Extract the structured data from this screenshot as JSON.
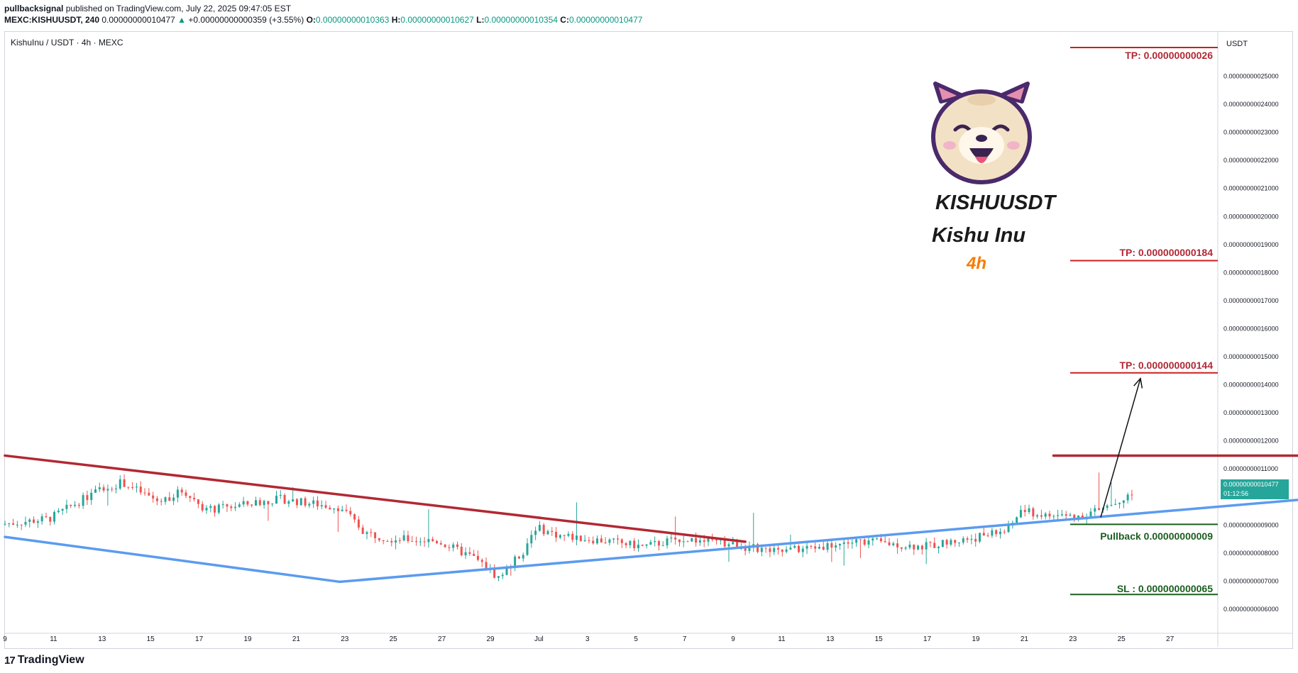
{
  "header": {
    "author": "pullbacksignal",
    "published": "published on TradingView.com, July 22, 2025 09:47:05 EST",
    "symbol_line": "MEXC:KISHUUSDT, 240",
    "last": "0.00000000010477",
    "change_icon": "▲",
    "change": "+0.00000000000359 (+3.55%)",
    "o_label": "O:",
    "o": "0.00000000010363",
    "h_label": "H:",
    "h": "0.00000000010627",
    "l_label": "L:",
    "l": "0.00000000010354",
    "c_label": "C:",
    "c": "0.00000000010477"
  },
  "chart_title": "KishuInu / USDT · 4h · MEXC",
  "logo_card": {
    "ticker": "KISHUUSDT",
    "name": "Kishu Inu",
    "timeframe": "4h",
    "icon": "shiba-dog-face-icon"
  },
  "annotations": {
    "tp1": "TP: 0.00000000026",
    "tp2": "TP: 0.000000000184",
    "tp3": "TP: 0.000000000144",
    "pullback": "Pullback 0.00000000009",
    "sl": "SL : 0.000000000065"
  },
  "price_badge": {
    "price": "0.00000000010477",
    "countdown": "01:12:56"
  },
  "footer": {
    "brand": "TradingView",
    "logo_icon": "tradingview-logo-icon"
  },
  "colors": {
    "up": "#26a69a",
    "down": "#ef5350",
    "resistance": "#b22833",
    "support": "#5b9bf0",
    "tp_line": "#cc1f1f",
    "sl_line": "#1b5e20",
    "accent": "#f57c00"
  },
  "chart_data": {
    "type": "candlestick",
    "title": "KishuInu / USDT · 4h · MEXC",
    "currency": "USDT",
    "y_unit": "1e-10 USDT",
    "ylim": [
      0.555,
      2.57
    ],
    "y_ticks": [
      "0.00000000025000",
      "0.00000000024000",
      "0.00000000023000",
      "0.00000000022000",
      "0.00000000021000",
      "0.00000000020000",
      "0.00000000019000",
      "0.00000000018000",
      "0.00000000017000",
      "0.00000000016000",
      "0.00000000015000",
      "0.00000000014000",
      "0.00000000013000",
      "0.00000000012000",
      "0.00000000011000",
      "0.00000000010000",
      "0.00000000009000",
      "0.00000000008000",
      "0.00000000007000",
      "0.00000000006000"
    ],
    "x_ticks": [
      "9",
      "11",
      "13",
      "15",
      "17",
      "19",
      "21",
      "23",
      "25",
      "27",
      "29",
      "Jul",
      "3",
      "5",
      "7",
      "9",
      "11",
      "13",
      "15",
      "17",
      "19",
      "21",
      "23",
      "25",
      "27"
    ],
    "x_range_days": [
      0,
      50
    ],
    "candle_count": 275,
    "price_path": [
      [
        0,
        0.9
      ],
      [
        2,
        0.92
      ],
      [
        4,
        1.02
      ],
      [
        5,
        1.05
      ],
      [
        6.5,
        0.98
      ],
      [
        7.5,
        1.02
      ],
      [
        8.5,
        0.95
      ],
      [
        10,
        0.97
      ],
      [
        11.5,
        0.99
      ],
      [
        14,
        0.96
      ],
      [
        15,
        0.87
      ],
      [
        16,
        0.85
      ],
      [
        18,
        0.84
      ],
      [
        19.5,
        0.78
      ],
      [
        20.5,
        0.71
      ],
      [
        21.5,
        0.8
      ],
      [
        22,
        0.89
      ],
      [
        23,
        0.86
      ],
      [
        25,
        0.84
      ],
      [
        26.5,
        0.82
      ],
      [
        28,
        0.85
      ],
      [
        30,
        0.83
      ],
      [
        32,
        0.8
      ],
      [
        34.5,
        0.83
      ],
      [
        35.5,
        0.84
      ],
      [
        38,
        0.82
      ],
      [
        40,
        0.85
      ],
      [
        41.5,
        0.88
      ],
      [
        42,
        0.95
      ],
      [
        43,
        0.93
      ],
      [
        44.5,
        0.93
      ],
      [
        45.5,
        0.96
      ],
      [
        47,
        1.02
      ],
      [
        48.5,
        1.05
      ],
      [
        50,
        1.04
      ],
      [
        51,
        1.02
      ],
      [
        53,
        1.04
      ],
      [
        54,
        1.03
      ],
      [
        55,
        1.05
      ]
    ],
    "lines": [
      {
        "name": "descending resistance",
        "from": [
          0,
          1.145
        ],
        "to": [
          30.5,
          0.838
        ]
      },
      {
        "name": "support",
        "from": [
          0,
          0.855
        ],
        "to": [
          13.8,
          0.695
        ]
      },
      {
        "name": "support",
        "from": [
          13.8,
          0.695
        ],
        "to": [
          55,
          1.0
        ]
      },
      {
        "name": "horizontal resistance",
        "from": [
          43.2,
          1.145
        ],
        "to": [
          55,
          1.145
        ]
      }
    ],
    "levels": {
      "tp1": 2.6,
      "tp2": 1.84,
      "tp3": 1.44,
      "pullback": 0.9,
      "sl": 0.65
    },
    "projection_arrow": {
      "from": [
        45.7,
        0.925
      ],
      "to": [
        47.5,
        1.42
      ]
    }
  }
}
